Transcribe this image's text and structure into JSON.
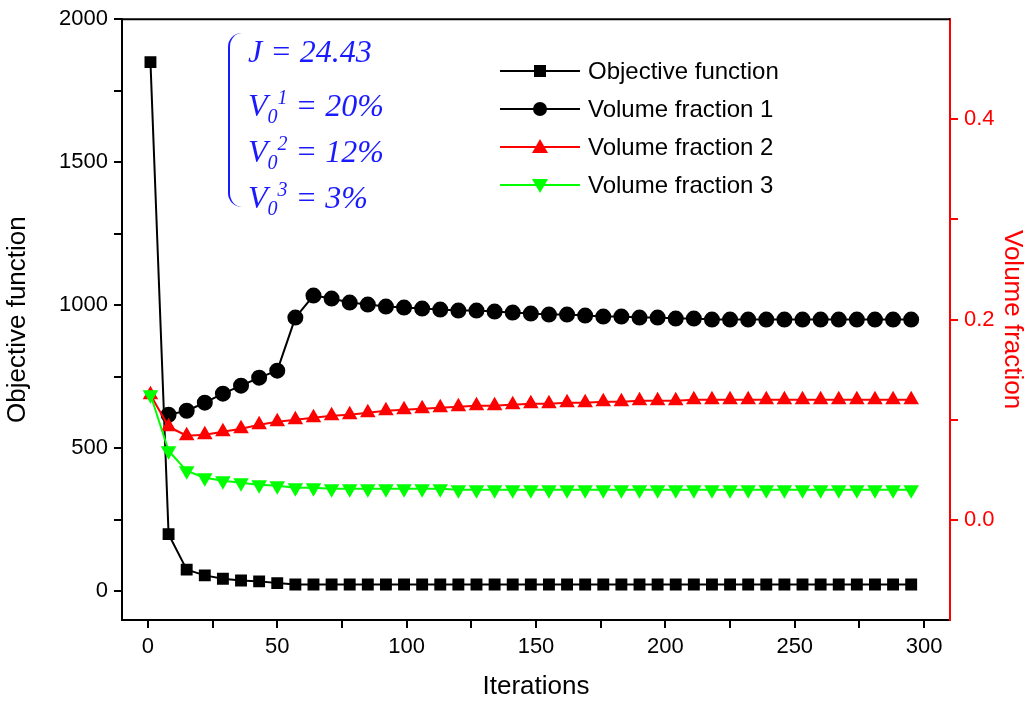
{
  "chart_data": {
    "type": "line",
    "xlabel": "Iterations",
    "ylabel": "Objective function",
    "y2label": "Volume fraction",
    "legend": "top right",
    "grid": false,
    "x": [
      1,
      8,
      15,
      22,
      29,
      36,
      43,
      50,
      57,
      64,
      71,
      78,
      85,
      92,
      99,
      106,
      113,
      120,
      127,
      134,
      141,
      148,
      155,
      162,
      169,
      176,
      183,
      190,
      197,
      204,
      211,
      218,
      225,
      232,
      239,
      246,
      253,
      260,
      267,
      274,
      281,
      288,
      295
    ],
    "xlim": [
      -10,
      310
    ],
    "xticks": [
      0,
      {
        "value": 25,
        "label": null
      },
      50,
      {
        "value": 75,
        "label": null
      },
      100,
      {
        "value": 125,
        "label": null
      },
      150,
      {
        "value": 175,
        "label": null
      },
      200,
      {
        "value": 225,
        "label": null
      },
      250,
      {
        "value": 275,
        "label": null
      },
      300
    ],
    "ylim": [
      -100,
      2000
    ],
    "yticks": [
      0,
      {
        "value": 250,
        "label": null
      },
      500,
      {
        "value": 750,
        "label": null
      },
      1000,
      {
        "value": 1250,
        "label": null
      },
      1500,
      {
        "value": 1750,
        "label": null
      },
      2000
    ],
    "y2lim": [
      -0.1,
      0.5
    ],
    "y2ticks": [
      {
        "value": 0,
        "label": "0.0"
      },
      {
        "value": 0.1,
        "label": null
      },
      {
        "value": 0.2,
        "label": "0.2"
      },
      {
        "value": 0.3,
        "label": null
      },
      {
        "value": 0.4,
        "label": "0.4"
      }
    ],
    "annotations": [
      "J = 24.43",
      "V$_{0}$$^{1}$ = 20%",
      "V$_{0}$$^{2}$ = 12%",
      "V$_{0}$$^{3}$ = 3%"
    ],
    "series": [
      {
        "name": "Objective function",
        "color": "#000000",
        "marker": "square",
        "values": [
          1850,
          200,
          76,
          56,
          44,
          38,
          35,
          29,
          24,
          24,
          24,
          24,
          24,
          24,
          24,
          24,
          24,
          24,
          24,
          24,
          24,
          24,
          24,
          24,
          24,
          24,
          24,
          24,
          24,
          24,
          24,
          24,
          24,
          24,
          24,
          24,
          24,
          24,
          24,
          24,
          24,
          24,
          24
        ]
      },
      {
        "name": "Volume fraction 1",
        "color": "#000000",
        "marker": "circle",
        "axis": "y2",
        "values": [
          null,
          0.105,
          0.109,
          0.117,
          0.126,
          0.134,
          0.142,
          0.149,
          0.202,
          0.224,
          0.221,
          0.217,
          0.215,
          0.213,
          0.212,
          0.211,
          0.21,
          0.209,
          0.209,
          0.208,
          0.207,
          0.206,
          0.205,
          0.205,
          0.204,
          0.203,
          0.203,
          0.202,
          0.202,
          0.201,
          0.201,
          0.2,
          0.2,
          0.2,
          0.2,
          0.2,
          0.2,
          0.2,
          0.2,
          0.2,
          0.2,
          0.2,
          0.2
        ]
      },
      {
        "name": "Volume fraction 2",
        "color": "#ff0000",
        "marker": "triangle",
        "axis": "y2",
        "values": [
          0.125,
          0.093,
          0.084,
          0.085,
          0.088,
          0.091,
          0.095,
          0.098,
          0.1,
          0.102,
          0.104,
          0.105,
          0.107,
          0.109,
          0.11,
          0.111,
          0.112,
          0.113,
          0.114,
          0.114,
          0.115,
          0.116,
          0.116,
          0.117,
          0.117,
          0.118,
          0.118,
          0.119,
          0.119,
          0.119,
          0.12,
          0.12,
          0.12,
          0.12,
          0.12,
          0.12,
          0.12,
          0.12,
          0.12,
          0.12,
          0.12,
          0.12,
          0.12
        ]
      },
      {
        "name": "Volume fraction 3",
        "color": "#00ff00",
        "marker": "triangle-down",
        "axis": "y2",
        "values": [
          0.125,
          0.069,
          0.049,
          0.042,
          0.039,
          0.037,
          0.035,
          0.034,
          0.032,
          0.032,
          0.031,
          0.031,
          0.031,
          0.031,
          0.031,
          0.031,
          0.031,
          0.03,
          0.03,
          0.03,
          0.03,
          0.03,
          0.03,
          0.03,
          0.03,
          0.03,
          0.03,
          0.03,
          0.03,
          0.03,
          0.03,
          0.03,
          0.03,
          0.03,
          0.03,
          0.03,
          0.03,
          0.03,
          0.03,
          0.03,
          0.03,
          0.03,
          0.03
        ]
      }
    ]
  }
}
